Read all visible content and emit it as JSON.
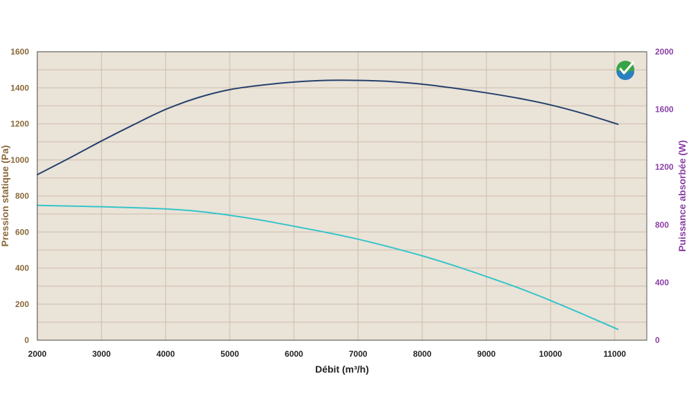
{
  "chart_data": {
    "type": "line",
    "xlabel": "Débit (m³/h)",
    "ylabel": "Pression statique (Pa)",
    "y2label": "Puissance absorbée (W)",
    "xlim": [
      2000,
      11500
    ],
    "ylim": [
      0,
      1600
    ],
    "y2lim": [
      0,
      2000
    ],
    "x_ticks": [
      2000,
      3000,
      4000,
      5000,
      6000,
      7000,
      8000,
      9000,
      10000,
      11000
    ],
    "y_ticks": [
      0,
      200,
      400,
      600,
      800,
      1000,
      1200,
      1400,
      1600
    ],
    "y2_ticks": [
      0,
      400,
      800,
      1200,
      1600,
      2000
    ],
    "grid": true,
    "series": [
      {
        "axis": "left",
        "color": "#233f6b",
        "x": [
          2000,
          2500,
          3000,
          3500,
          4000,
          4500,
          5000,
          5500,
          6000,
          6500,
          7000,
          7500,
          8000,
          8500,
          9000,
          9500,
          10000,
          10500,
          11050
        ],
        "values": [
          918,
          1010,
          1105,
          1195,
          1280,
          1345,
          1390,
          1415,
          1432,
          1441,
          1441,
          1435,
          1420,
          1398,
          1372,
          1342,
          1305,
          1258,
          1198
        ]
      },
      {
        "axis": "left",
        "color": "#33c4c9",
        "x": [
          2000,
          2500,
          3000,
          3500,
          4000,
          4500,
          5000,
          5500,
          6000,
          6500,
          7000,
          7500,
          8000,
          8500,
          9000,
          9500,
          10000,
          10500,
          11050
        ],
        "values": [
          748,
          744,
          740,
          735,
          728,
          715,
          693,
          665,
          632,
          598,
          560,
          516,
          468,
          413,
          353,
          290,
          220,
          145,
          60
        ]
      }
    ]
  },
  "colors": {
    "plot_background": "#eae3d8",
    "grid": "#d6c8b8",
    "left_axis": "#8a6a3a",
    "right_axis": "#8b3fa6",
    "logo": "checkmark-logo"
  }
}
